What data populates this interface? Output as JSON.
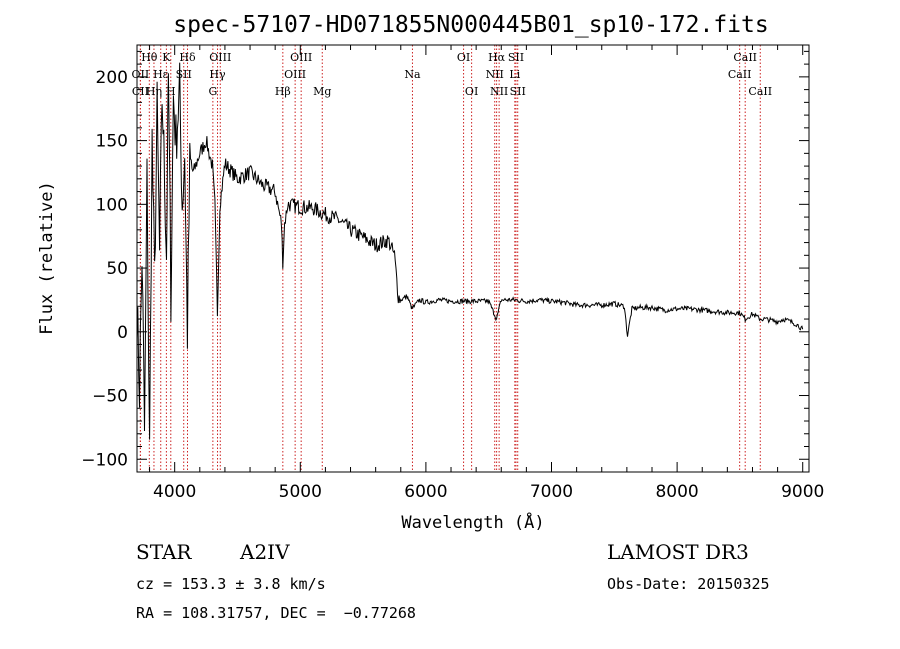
{
  "chart_data": {
    "type": "line",
    "title": "spec-57107-HD071855N000445B01_sp10-172.fits",
    "xlabel": "Wavelength (Å)",
    "ylabel": "Flux (relative)",
    "xlim": [
      3700,
      9050
    ],
    "ylim": [
      -110,
      225
    ],
    "x_ticks": [
      {
        "value": 4000,
        "label": "4000"
      },
      {
        "value": 5000,
        "label": "5000"
      },
      {
        "value": 6000,
        "label": "6000"
      },
      {
        "value": 7000,
        "label": "7000"
      },
      {
        "value": 8000,
        "label": "8000"
      },
      {
        "value": 9000,
        "label": "9000"
      }
    ],
    "y_ticks": [
      {
        "value": -100,
        "label": "−100"
      },
      {
        "value": -50,
        "label": "−50"
      },
      {
        "value": 0,
        "label": "0"
      },
      {
        "value": 50,
        "label": "50"
      },
      {
        "value": 100,
        "label": "100"
      },
      {
        "value": 150,
        "label": "150"
      },
      {
        "value": 200,
        "label": "200"
      }
    ],
    "spectrum_knots": [
      [
        3700,
        20
      ],
      [
        3720,
        -45
      ],
      [
        3740,
        60
      ],
      [
        3760,
        -80
      ],
      [
        3780,
        120
      ],
      [
        3800,
        -95
      ],
      [
        3820,
        150
      ],
      [
        3840,
        40
      ],
      [
        3860,
        175
      ],
      [
        3880,
        60
      ],
      [
        3900,
        185
      ],
      [
        3920,
        120
      ],
      [
        3935,
        60
      ],
      [
        3950,
        200
      ],
      [
        3970,
        30
      ],
      [
        3990,
        185
      ],
      [
        4010,
        150
      ],
      [
        4040,
        190
      ],
      [
        4060,
        100
      ],
      [
        4080,
        140
      ],
      [
        4101,
        0
      ],
      [
        4120,
        130
      ],
      [
        4150,
        125
      ],
      [
        4200,
        140
      ],
      [
        4250,
        150
      ],
      [
        4300,
        130
      ],
      [
        4320,
        100
      ],
      [
        4340,
        15
      ],
      [
        4360,
        100
      ],
      [
        4400,
        132
      ],
      [
        4500,
        120
      ],
      [
        4600,
        125
      ],
      [
        4700,
        115
      ],
      [
        4800,
        110
      ],
      [
        4850,
        85
      ],
      [
        4861,
        55
      ],
      [
        4875,
        85
      ],
      [
        4900,
        100
      ],
      [
        5000,
        98
      ],
      [
        5100,
        97
      ],
      [
        5200,
        92
      ],
      [
        5300,
        88
      ],
      [
        5400,
        80
      ],
      [
        5500,
        74
      ],
      [
        5600,
        68
      ],
      [
        5700,
        72
      ],
      [
        5750,
        60
      ],
      [
        5780,
        28
      ],
      [
        5800,
        25
      ],
      [
        5850,
        28
      ],
      [
        5890,
        18
      ],
      [
        5950,
        25
      ],
      [
        6000,
        23
      ],
      [
        6100,
        25
      ],
      [
        6200,
        24
      ],
      [
        6300,
        24
      ],
      [
        6400,
        24
      ],
      [
        6500,
        24
      ],
      [
        6563,
        10
      ],
      [
        6600,
        25
      ],
      [
        6700,
        25
      ],
      [
        6800,
        24
      ],
      [
        6900,
        25
      ],
      [
        7000,
        24
      ],
      [
        7100,
        23
      ],
      [
        7200,
        21
      ],
      [
        7300,
        21
      ],
      [
        7400,
        21
      ],
      [
        7500,
        22
      ],
      [
        7580,
        20
      ],
      [
        7605,
        -3
      ],
      [
        7640,
        18
      ],
      [
        7700,
        19
      ],
      [
        7800,
        19
      ],
      [
        7900,
        17
      ],
      [
        8000,
        18
      ],
      [
        8100,
        18
      ],
      [
        8200,
        17
      ],
      [
        8300,
        16
      ],
      [
        8400,
        15
      ],
      [
        8500,
        15
      ],
      [
        8542,
        10
      ],
      [
        8600,
        14
      ],
      [
        8662,
        10
      ],
      [
        8700,
        10
      ],
      [
        8800,
        8
      ],
      [
        8850,
        10
      ],
      [
        8900,
        8
      ],
      [
        8950,
        6
      ],
      [
        9000,
        2
      ]
    ],
    "lines": [
      {
        "name": "CII",
        "wavelength": 3727,
        "row": 2
      },
      {
        "name": "Hθ",
        "wavelength": 3798,
        "row": 0
      },
      {
        "name": "OII",
        "wavelength": 3727,
        "row": 1
      },
      {
        "name": "Hη",
        "wavelength": 3835,
        "row": 2
      },
      {
        "name": "Hε",
        "wavelength": 3889,
        "row": 1
      },
      {
        "name": "K",
        "wavelength": 3934,
        "row": 0
      },
      {
        "name": "H",
        "wavelength": 3969,
        "row": 2
      },
      {
        "name": "SII",
        "wavelength": 4072,
        "row": 1
      },
      {
        "name": "Hδ",
        "wavelength": 4102,
        "row": 0
      },
      {
        "name": "OIII",
        "wavelength": 4363,
        "row": 0
      },
      {
        "name": "Hγ",
        "wavelength": 4341,
        "row": 1
      },
      {
        "name": "G",
        "wavelength": 4304,
        "row": 2
      },
      {
        "name": "Hβ",
        "wavelength": 4861,
        "row": 2
      },
      {
        "name": "OIII",
        "wavelength": 4959,
        "row": 1
      },
      {
        "name": "OIII",
        "wavelength": 5007,
        "row": 0
      },
      {
        "name": "Mg",
        "wavelength": 5175,
        "row": 2
      },
      {
        "name": "Na",
        "wavelength": 5893,
        "row": 1
      },
      {
        "name": "OI",
        "wavelength": 6300,
        "row": 0
      },
      {
        "name": "OI",
        "wavelength": 6364,
        "row": 2
      },
      {
        "name": "Hα",
        "wavelength": 6563,
        "row": 0
      },
      {
        "name": "NII",
        "wavelength": 6548,
        "row": 1
      },
      {
        "name": "NII",
        "wavelength": 6583,
        "row": 2
      },
      {
        "name": "SII",
        "wavelength": 6717,
        "row": 0
      },
      {
        "name": "Li",
        "wavelength": 6708,
        "row": 1
      },
      {
        "name": "SII",
        "wavelength": 6731,
        "row": 2
      },
      {
        "name": "CaII",
        "wavelength": 8542,
        "row": 0
      },
      {
        "name": "CaII",
        "wavelength": 8498,
        "row": 1
      },
      {
        "name": "CaII",
        "wavelength": 8662,
        "row": 2
      }
    ]
  },
  "info": {
    "object_class": "STAR",
    "subclass": "A2IV",
    "survey": "LAMOST DR3",
    "redshift_text": "cz = 153.3 ± 3.8 km/s",
    "obs_date_text": "Obs-Date: 20150325",
    "coords_text": "RA = 108.31757, DEC =  −0.77268"
  },
  "colors": {
    "spectrum": "#000000",
    "line_marker": "#cc2222",
    "axes": "#000000"
  }
}
